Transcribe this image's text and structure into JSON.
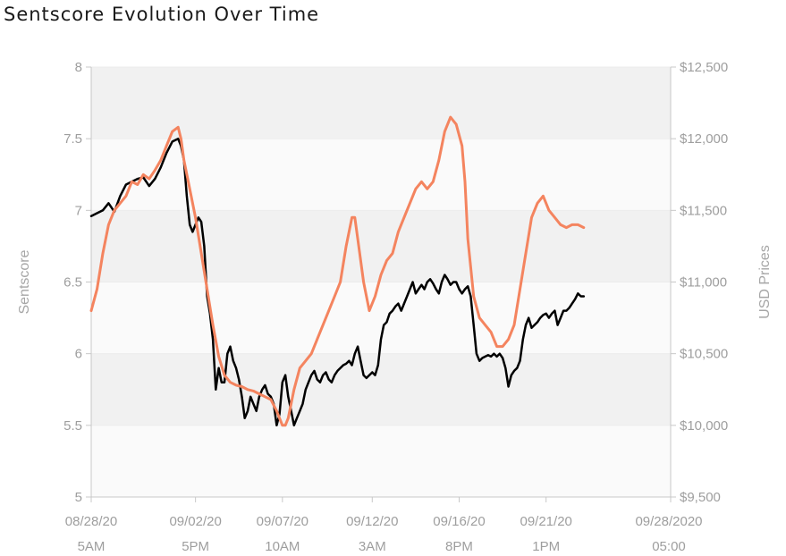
{
  "title": "Sentscore Evolution Over Time",
  "chart_data": {
    "type": "line",
    "title": "Sentscore Evolution Over Time",
    "ylabel": "Sentscore",
    "y2label": "USD Prices",
    "ylim": [
      5,
      8
    ],
    "y2lim": [
      9500,
      12500
    ],
    "yticks": [
      "5",
      "5.5",
      "6",
      "6.5",
      "7",
      "7.5",
      "8"
    ],
    "y2ticks": [
      "$9,500",
      "$10,000",
      "$10,500",
      "$11,000",
      "$11,500",
      "$12,000",
      "$12,500"
    ],
    "x_range": [
      0,
      100
    ],
    "xticks": [
      {
        "x": 0,
        "line1": "08/28/20",
        "line2": "5AM"
      },
      {
        "x": 18,
        "line1": "09/02/20",
        "line2": "5PM"
      },
      {
        "x": 33,
        "line1": "09/07/20",
        "line2": "10AM"
      },
      {
        "x": 48.5,
        "line1": "09/12/20",
        "line2": "3AM"
      },
      {
        "x": 63.5,
        "line1": "09/16/20",
        "line2": "8PM"
      },
      {
        "x": 78.5,
        "line1": "09/21/20",
        "line2": "1PM"
      },
      {
        "x": 100,
        "line1": "09/28/2020",
        "line2": "05:00"
      }
    ],
    "grid": true,
    "series": [
      {
        "name": "",
        "axis": "left",
        "color": "#000000",
        "points": [
          [
            0,
            6.96
          ],
          [
            1,
            6.98
          ],
          [
            2,
            7.0
          ],
          [
            3,
            7.05
          ],
          [
            4,
            6.99
          ],
          [
            5,
            7.1
          ],
          [
            6,
            7.18
          ],
          [
            7,
            7.2
          ],
          [
            8,
            7.22
          ],
          [
            9,
            7.23
          ],
          [
            10,
            7.17
          ],
          [
            11,
            7.22
          ],
          [
            12,
            7.3
          ],
          [
            13,
            7.4
          ],
          [
            14,
            7.48
          ],
          [
            15,
            7.5
          ],
          [
            15.5,
            7.45
          ],
          [
            16,
            7.35
          ],
          [
            16.5,
            7.1
          ],
          [
            17,
            6.9
          ],
          [
            17.5,
            6.85
          ],
          [
            18,
            6.9
          ],
          [
            18.5,
            6.95
          ],
          [
            19,
            6.92
          ],
          [
            19.5,
            6.75
          ],
          [
            20,
            6.4
          ],
          [
            20.5,
            6.28
          ],
          [
            21,
            6.1
          ],
          [
            21.5,
            5.75
          ],
          [
            22,
            5.9
          ],
          [
            22.5,
            5.8
          ],
          [
            23,
            5.8
          ],
          [
            23.5,
            6.0
          ],
          [
            24,
            6.05
          ],
          [
            24.5,
            5.95
          ],
          [
            25,
            5.9
          ],
          [
            25.5,
            5.82
          ],
          [
            26,
            5.7
          ],
          [
            26.5,
            5.55
          ],
          [
            27,
            5.6
          ],
          [
            27.5,
            5.7
          ],
          [
            28,
            5.65
          ],
          [
            28.5,
            5.6
          ],
          [
            29,
            5.7
          ],
          [
            29.5,
            5.75
          ],
          [
            30,
            5.78
          ],
          [
            30.5,
            5.72
          ],
          [
            31,
            5.7
          ],
          [
            31.5,
            5.65
          ],
          [
            32,
            5.5
          ],
          [
            32.5,
            5.58
          ],
          [
            33,
            5.8
          ],
          [
            33.5,
            5.85
          ],
          [
            34,
            5.7
          ],
          [
            34.5,
            5.6
          ],
          [
            35,
            5.5
          ],
          [
            35.5,
            5.55
          ],
          [
            36,
            5.6
          ],
          [
            36.5,
            5.65
          ],
          [
            37,
            5.75
          ],
          [
            37.5,
            5.8
          ],
          [
            38,
            5.85
          ],
          [
            38.5,
            5.88
          ],
          [
            39,
            5.82
          ],
          [
            39.5,
            5.8
          ],
          [
            40,
            5.85
          ],
          [
            40.5,
            5.87
          ],
          [
            41,
            5.82
          ],
          [
            41.5,
            5.8
          ],
          [
            42,
            5.85
          ],
          [
            42.5,
            5.88
          ],
          [
            43,
            5.9
          ],
          [
            43.5,
            5.92
          ],
          [
            44,
            5.93
          ],
          [
            44.5,
            5.95
          ],
          [
            45,
            5.92
          ],
          [
            45.5,
            6.0
          ],
          [
            46,
            6.05
          ],
          [
            46.5,
            5.95
          ],
          [
            47,
            5.85
          ],
          [
            47.5,
            5.83
          ],
          [
            48,
            5.85
          ],
          [
            48.5,
            5.87
          ],
          [
            49,
            5.85
          ],
          [
            49.5,
            5.92
          ],
          [
            50,
            6.1
          ],
          [
            50.5,
            6.2
          ],
          [
            51,
            6.22
          ],
          [
            51.5,
            6.28
          ],
          [
            52,
            6.3
          ],
          [
            52.5,
            6.33
          ],
          [
            53,
            6.35
          ],
          [
            53.5,
            6.3
          ],
          [
            54,
            6.35
          ],
          [
            54.5,
            6.4
          ],
          [
            55,
            6.45
          ],
          [
            55.5,
            6.5
          ],
          [
            56,
            6.42
          ],
          [
            56.5,
            6.45
          ],
          [
            57,
            6.48
          ],
          [
            57.5,
            6.45
          ],
          [
            58,
            6.5
          ],
          [
            58.5,
            6.52
          ],
          [
            59,
            6.49
          ],
          [
            59.5,
            6.45
          ],
          [
            60,
            6.42
          ],
          [
            60.5,
            6.5
          ],
          [
            61,
            6.55
          ],
          [
            61.5,
            6.52
          ],
          [
            62,
            6.48
          ],
          [
            62.5,
            6.5
          ],
          [
            63,
            6.5
          ],
          [
            63.5,
            6.45
          ],
          [
            64,
            6.42
          ],
          [
            64.5,
            6.45
          ],
          [
            65,
            6.47
          ],
          [
            65.5,
            6.4
          ],
          [
            66,
            6.2
          ],
          [
            66.5,
            6.0
          ],
          [
            67,
            5.95
          ],
          [
            67.5,
            5.97
          ],
          [
            68,
            5.98
          ],
          [
            68.5,
            5.99
          ],
          [
            69,
            5.98
          ],
          [
            69.5,
            6.0
          ],
          [
            70,
            5.98
          ],
          [
            70.5,
            6.0
          ],
          [
            71,
            5.97
          ],
          [
            71.5,
            5.9
          ],
          [
            72,
            5.77
          ],
          [
            72.5,
            5.85
          ],
          [
            73,
            5.88
          ],
          [
            73.5,
            5.9
          ],
          [
            74,
            5.95
          ],
          [
            74.5,
            6.1
          ],
          [
            75,
            6.2
          ],
          [
            75.5,
            6.25
          ],
          [
            76,
            6.18
          ],
          [
            76.5,
            6.2
          ],
          [
            77,
            6.22
          ],
          [
            77.5,
            6.25
          ],
          [
            78,
            6.27
          ],
          [
            78.5,
            6.28
          ],
          [
            79,
            6.25
          ],
          [
            79.5,
            6.28
          ],
          [
            80,
            6.3
          ],
          [
            80.5,
            6.2
          ],
          [
            81,
            6.25
          ],
          [
            81.5,
            6.3
          ],
          [
            82,
            6.3
          ],
          [
            82.5,
            6.32
          ],
          [
            83,
            6.35
          ],
          [
            83.5,
            6.38
          ],
          [
            84,
            6.42
          ],
          [
            84.5,
            6.4
          ],
          [
            85,
            6.4
          ]
        ]
      },
      {
        "name": "",
        "axis": "right",
        "color": "#f4845f",
        "points": [
          [
            0,
            10800
          ],
          [
            1,
            10950
          ],
          [
            2,
            11200
          ],
          [
            3,
            11400
          ],
          [
            4,
            11500
          ],
          [
            5,
            11550
          ],
          [
            6,
            11600
          ],
          [
            7,
            11700
          ],
          [
            8,
            11680
          ],
          [
            9,
            11750
          ],
          [
            10,
            11720
          ],
          [
            11,
            11780
          ],
          [
            12,
            11850
          ],
          [
            13,
            11950
          ],
          [
            14,
            12050
          ],
          [
            15,
            12080
          ],
          [
            15.5,
            12000
          ],
          [
            16,
            11850
          ],
          [
            17,
            11650
          ],
          [
            18,
            11450
          ],
          [
            19,
            11200
          ],
          [
            20,
            10950
          ],
          [
            21,
            10700
          ],
          [
            22,
            10480
          ],
          [
            23,
            10350
          ],
          [
            24,
            10300
          ],
          [
            25,
            10280
          ],
          [
            26,
            10270
          ],
          [
            27,
            10250
          ],
          [
            28,
            10240
          ],
          [
            29,
            10220
          ],
          [
            30,
            10200
          ],
          [
            31,
            10180
          ],
          [
            32,
            10100
          ],
          [
            33,
            10000
          ],
          [
            33.5,
            10000
          ],
          [
            34,
            10050
          ],
          [
            35,
            10250
          ],
          [
            36,
            10400
          ],
          [
            37,
            10450
          ],
          [
            38,
            10500
          ],
          [
            39,
            10600
          ],
          [
            40,
            10700
          ],
          [
            41,
            10800
          ],
          [
            42,
            10900
          ],
          [
            43,
            11000
          ],
          [
            44,
            11250
          ],
          [
            45,
            11450
          ],
          [
            45.5,
            11450
          ],
          [
            46,
            11300
          ],
          [
            47,
            11000
          ],
          [
            48,
            10800
          ],
          [
            49,
            10900
          ],
          [
            50,
            11050
          ],
          [
            51,
            11150
          ],
          [
            52,
            11200
          ],
          [
            53,
            11350
          ],
          [
            54,
            11450
          ],
          [
            55,
            11550
          ],
          [
            56,
            11650
          ],
          [
            57,
            11700
          ],
          [
            58,
            11650
          ],
          [
            59,
            11700
          ],
          [
            60,
            11850
          ],
          [
            61,
            12050
          ],
          [
            62,
            12150
          ],
          [
            63,
            12100
          ],
          [
            64,
            11950
          ],
          [
            64.5,
            11700
          ],
          [
            65,
            11300
          ],
          [
            66,
            10900
          ],
          [
            67,
            10750
          ],
          [
            68,
            10700
          ],
          [
            69,
            10650
          ],
          [
            70,
            10550
          ],
          [
            71,
            10550
          ],
          [
            72,
            10600
          ],
          [
            73,
            10700
          ],
          [
            74,
            10950
          ],
          [
            75,
            11200
          ],
          [
            76,
            11450
          ],
          [
            77,
            11550
          ],
          [
            78,
            11600
          ],
          [
            79,
            11500
          ],
          [
            80,
            11450
          ],
          [
            81,
            11400
          ],
          [
            82,
            11380
          ],
          [
            83,
            11400
          ],
          [
            84,
            11400
          ],
          [
            85,
            11380
          ]
        ]
      }
    ]
  }
}
